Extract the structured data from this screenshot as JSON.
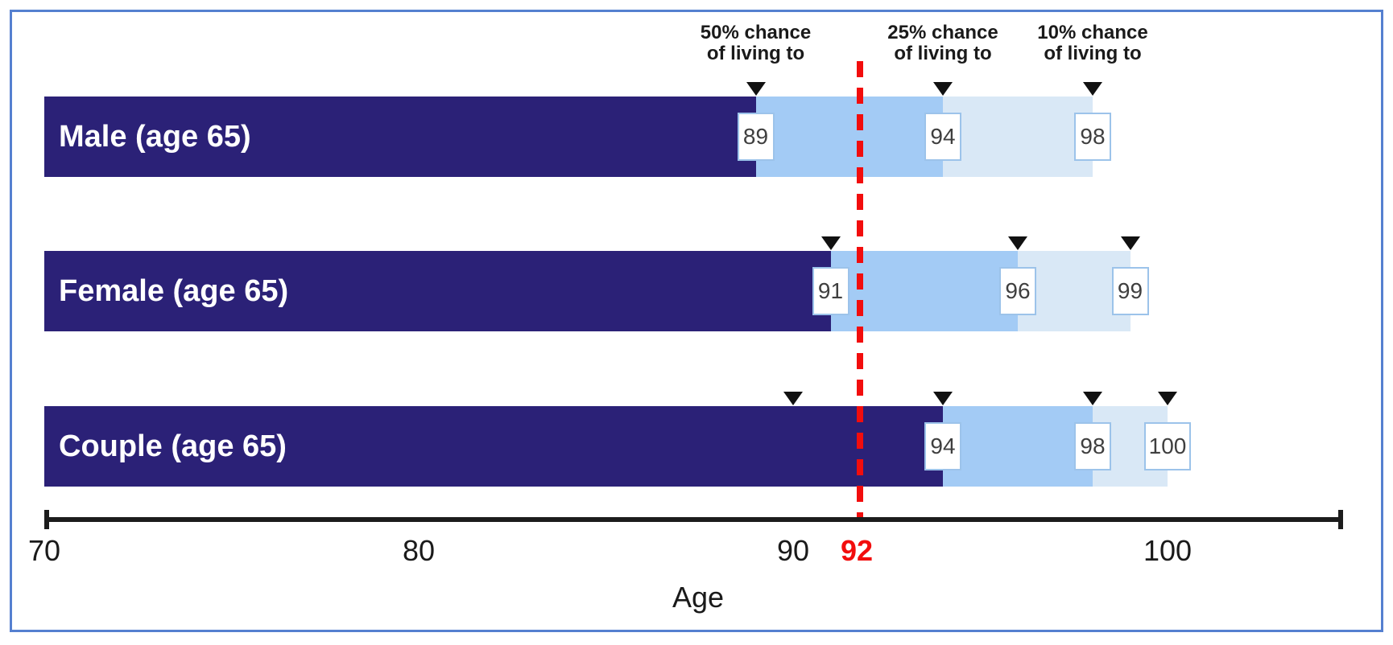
{
  "figure": {
    "border_color": "#5580d0",
    "background": "#ffffff"
  },
  "headers": [
    {
      "line1": "50% chance",
      "line2": "of living to",
      "anchor_age": 89
    },
    {
      "line1": "25% chance",
      "line2": "of living to",
      "anchor_age": 94
    },
    {
      "line1": "10% chance",
      "line2": "of living to",
      "anchor_age": 98
    }
  ],
  "rows": [
    {
      "label": "Male (age 65)",
      "p50": 89,
      "p25": 94,
      "p10": 98,
      "extra_markers": []
    },
    {
      "label": "Female (age 65)",
      "p50": 91,
      "p25": 96,
      "p10": 99,
      "extra_markers": []
    },
    {
      "label": "Couple (age 65)",
      "p50": 94,
      "p25": 98,
      "p10": 100,
      "extra_markers": [
        90
      ]
    }
  ],
  "axis": {
    "title": "Age",
    "ticks": [
      70,
      80,
      90,
      100
    ],
    "highlight_tick": {
      "value": 92
    },
    "range_start": 70
  },
  "reference_line": {
    "age": 92,
    "style": "dashed",
    "color": "#f20d0d"
  },
  "colors": {
    "segment_50": "#2b2177",
    "segment_25": "#a3cbf5",
    "segment_10": "#d9e8f6",
    "marker": "#111111",
    "value_box_border": "#9cc3ea",
    "value_text": "#3f3f3f",
    "reference_red": "#f20d0d",
    "frame_blue": "#5580d0"
  },
  "chart_data": {
    "type": "bar",
    "variant": "horizontal-interval-survival",
    "categories": [
      "Male (age 65)",
      "Female (age 65)",
      "Couple (age 65)"
    ],
    "series": [
      {
        "name": "50% chance of living to",
        "values": [
          89,
          91,
          94
        ]
      },
      {
        "name": "25% chance of living to",
        "values": [
          94,
          96,
          98
        ]
      },
      {
        "name": "10% chance of living to",
        "values": [
          98,
          99,
          100
        ]
      }
    ],
    "bar_start_x": 70,
    "xlabel": "Age",
    "xlim": [
      70,
      105
    ],
    "x_ticks": [
      70,
      80,
      90,
      100
    ],
    "highlight_x_tick": 92,
    "reference_line_x": 92,
    "unlabeled_markers": [
      {
        "category": "Couple (age 65)",
        "x": 90
      }
    ],
    "legend_position": "top-inline",
    "grid": false
  }
}
